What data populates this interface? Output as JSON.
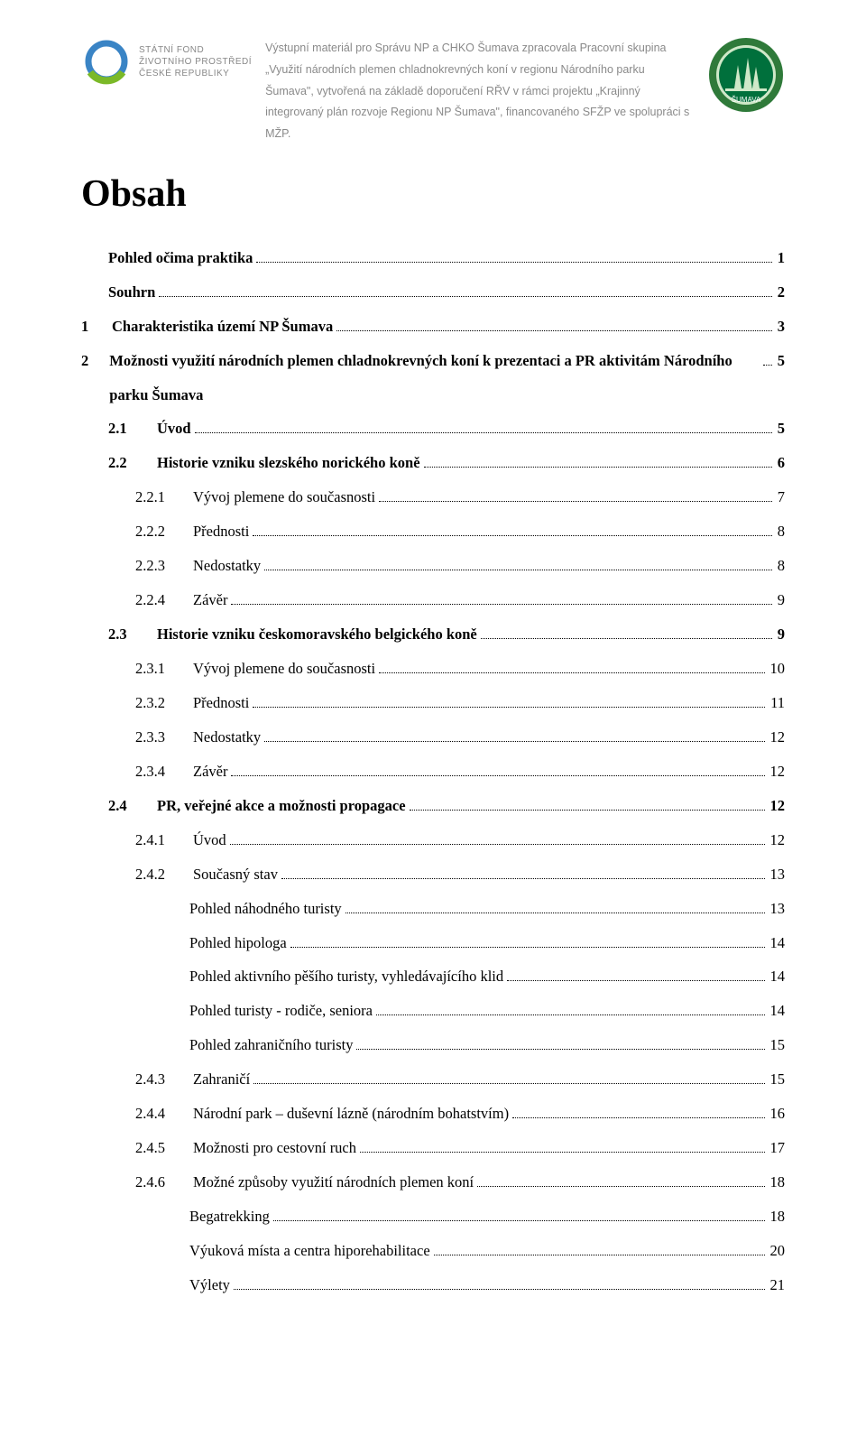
{
  "header": {
    "logoLeft": {
      "line1": "STÁTNÍ FOND",
      "line2": "ŽIVOTNÍHO PROSTŘEDÍ",
      "line3": "ČESKÉ REPUBLIKY",
      "ringColor": "#3a84c5",
      "arcColor": "#7bb928"
    },
    "text": "Výstupní materiál pro Správu NP a CHKO Šumava zpracovala Pracovní skupina „Využití národních plemen chladnokrevných koní v regionu Národního parku Šumava\", vytvořená na základě doporučení RŘV v rámci projektu „Krajinný integrovaný plán rozvoje Regionu NP Šumava\", financovaného SFŽP ve spolupráci s MŽP.",
    "logoRight": {
      "outer": "#2f7a3a",
      "inner": "#00703c",
      "treeFill": "#cfe8c8",
      "bottomText": "ŠUMAVA"
    }
  },
  "title": "Obsah",
  "toc": [
    {
      "level": 0,
      "bold": true,
      "num": "",
      "label": "Pohled očima praktika",
      "page": "1"
    },
    {
      "level": 0,
      "bold": true,
      "num": "",
      "label": "Souhrn",
      "page": "2"
    },
    {
      "level": 1,
      "bold": true,
      "num": "1",
      "label": "Charakteristika území NP Šumava",
      "page": "3"
    },
    {
      "level": 1,
      "bold": true,
      "num": "2",
      "label": "Možnosti využití národních plemen chladnokrevných koní k prezentaci a PR aktivitám Národního parku Šumava",
      "page": "5"
    },
    {
      "level": 2,
      "bold": true,
      "num": "2.1",
      "label": "Úvod",
      "page": "5"
    },
    {
      "level": 2,
      "bold": true,
      "num": "2.2",
      "label": "Historie vzniku slezského norického koně",
      "page": "6"
    },
    {
      "level": 3,
      "bold": false,
      "num": "2.2.1",
      "label": "Vývoj plemene do současnosti",
      "page": "7"
    },
    {
      "level": 3,
      "bold": false,
      "num": "2.2.2",
      "label": "Přednosti",
      "page": "8"
    },
    {
      "level": 3,
      "bold": false,
      "num": "2.2.3",
      "label": "Nedostatky",
      "page": "8"
    },
    {
      "level": 3,
      "bold": false,
      "num": "2.2.4",
      "label": "Závěr",
      "page": "9"
    },
    {
      "level": 2,
      "bold": true,
      "num": "2.3",
      "label": "Historie vzniku českomoravského belgického koně",
      "page": "9"
    },
    {
      "level": 3,
      "bold": false,
      "num": "2.3.1",
      "label": "Vývoj plemene do současnosti",
      "page": "10"
    },
    {
      "level": 3,
      "bold": false,
      "num": "2.3.2",
      "label": "Přednosti",
      "page": "11"
    },
    {
      "level": 3,
      "bold": false,
      "num": "2.3.3",
      "label": "Nedostatky",
      "page": "12"
    },
    {
      "level": 3,
      "bold": false,
      "num": "2.3.4",
      "label": "Závěr",
      "page": "12"
    },
    {
      "level": 2,
      "bold": true,
      "num": "2.4",
      "label": "PR, veřejné akce a možnosti propagace",
      "page": "12"
    },
    {
      "level": 3,
      "bold": false,
      "num": "2.4.1",
      "label": "Úvod",
      "page": "12"
    },
    {
      "level": 3,
      "bold": false,
      "num": "2.4.2",
      "label": "Současný stav",
      "page": "13"
    },
    {
      "level": 4,
      "bold": false,
      "num": "",
      "label": "Pohled náhodného turisty",
      "page": "13"
    },
    {
      "level": 4,
      "bold": false,
      "num": "",
      "label": "Pohled hipologa",
      "page": "14"
    },
    {
      "level": 4,
      "bold": false,
      "num": "",
      "label": "Pohled aktivního pěšího turisty, vyhledávajícího klid",
      "page": "14"
    },
    {
      "level": 4,
      "bold": false,
      "num": "",
      "label": "Pohled turisty - rodiče, seniora",
      "page": "14"
    },
    {
      "level": 4,
      "bold": false,
      "num": "",
      "label": "Pohled zahraničního turisty",
      "page": "15"
    },
    {
      "level": 3,
      "bold": false,
      "num": "2.4.3",
      "label": "Zahraničí",
      "page": "15"
    },
    {
      "level": 3,
      "bold": false,
      "num": "2.4.4",
      "label": "Národní park – duševní lázně (národním bohatstvím)",
      "page": "16"
    },
    {
      "level": 3,
      "bold": false,
      "num": "2.4.5",
      "label": "Možnosti pro cestovní ruch",
      "page": "17"
    },
    {
      "level": 3,
      "bold": false,
      "num": "2.4.6",
      "label": "Možné způsoby využití národních plemen koní",
      "page": "18"
    },
    {
      "level": 4,
      "bold": false,
      "num": "",
      "label": "Begatrekking",
      "page": "18"
    },
    {
      "level": 4,
      "bold": false,
      "num": "",
      "label": "Výuková místa a centra hiporehabilitace",
      "page": "20"
    },
    {
      "level": 4,
      "bold": false,
      "num": "",
      "label": "Výlety",
      "page": "21"
    }
  ],
  "style": {
    "numWidths": {
      "1": 28,
      "2": 48,
      "3": 58
    }
  }
}
